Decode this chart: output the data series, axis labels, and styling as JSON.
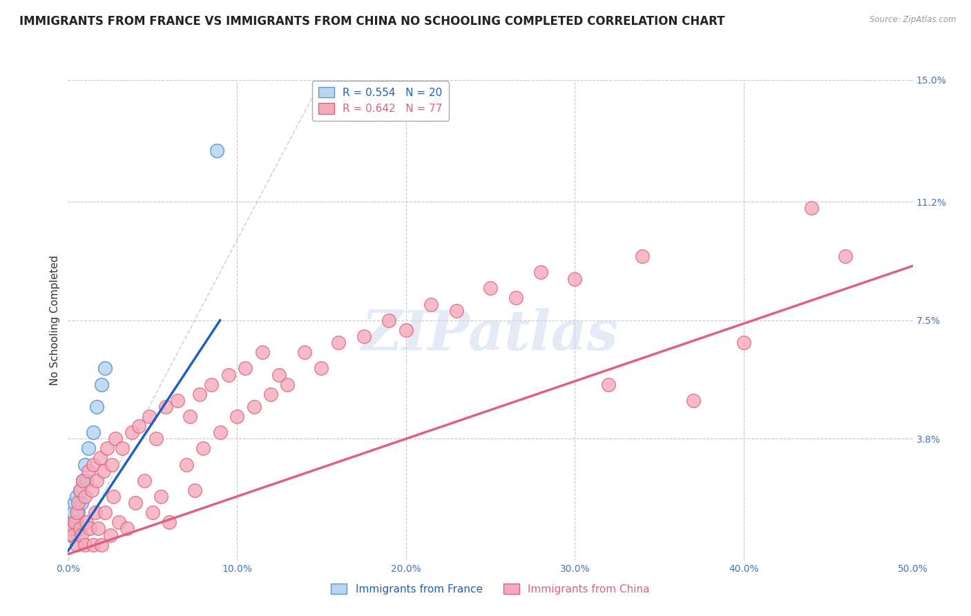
{
  "title": "IMMIGRANTS FROM FRANCE VS IMMIGRANTS FROM CHINA NO SCHOOLING COMPLETED CORRELATION CHART",
  "source": "Source: ZipAtlas.com",
  "ylabel": "No Schooling Completed",
  "legend_labels": [
    "Immigrants from France",
    "Immigrants from China"
  ],
  "france_label": "R = 0.554   N = 20",
  "china_label": "R = 0.642   N = 77",
  "xlim": [
    0.0,
    0.5
  ],
  "ylim": [
    0.0,
    0.15
  ],
  "xticks": [
    0.0,
    0.1,
    0.2,
    0.3,
    0.4,
    0.5
  ],
  "xticklabels": [
    "0.0%",
    "10.0%",
    "20.0%",
    "30.0%",
    "40.0%",
    "50.0%"
  ],
  "yticks": [
    0.0,
    0.038,
    0.075,
    0.112,
    0.15
  ],
  "yticklabels": [
    "",
    "3.8%",
    "7.5%",
    "11.2%",
    "15.0%"
  ],
  "grid_color": "#c8c8c8",
  "background_color": "#ffffff",
  "france_color": "#b8d4f0",
  "france_edge": "#5a9ad0",
  "china_color": "#f5aabb",
  "china_edge": "#e06080",
  "france_line_color": "#2060c0",
  "china_line_color": "#e06080",
  "diagonal_color": "#c0c0c0",
  "watermark_text": "ZIPatlas",
  "title_fontsize": 12,
  "axis_label_fontsize": 11,
  "tick_fontsize": 10,
  "france_scatter_x": [
    0.001,
    0.002,
    0.003,
    0.003,
    0.004,
    0.004,
    0.005,
    0.005,
    0.006,
    0.007,
    0.008,
    0.009,
    0.01,
    0.011,
    0.012,
    0.015,
    0.017,
    0.02,
    0.022,
    0.088
  ],
  "france_scatter_y": [
    0.01,
    0.008,
    0.012,
    0.015,
    0.01,
    0.018,
    0.012,
    0.02,
    0.015,
    0.022,
    0.018,
    0.025,
    0.03,
    0.025,
    0.035,
    0.04,
    0.048,
    0.055,
    0.06,
    0.128
  ],
  "china_scatter_x": [
    0.002,
    0.003,
    0.004,
    0.005,
    0.005,
    0.006,
    0.007,
    0.007,
    0.008,
    0.009,
    0.01,
    0.01,
    0.011,
    0.012,
    0.013,
    0.014,
    0.015,
    0.015,
    0.016,
    0.017,
    0.018,
    0.019,
    0.02,
    0.021,
    0.022,
    0.023,
    0.025,
    0.026,
    0.027,
    0.028,
    0.03,
    0.032,
    0.035,
    0.038,
    0.04,
    0.042,
    0.045,
    0.048,
    0.05,
    0.052,
    0.055,
    0.058,
    0.06,
    0.065,
    0.07,
    0.072,
    0.075,
    0.078,
    0.08,
    0.085,
    0.09,
    0.095,
    0.1,
    0.105,
    0.11,
    0.115,
    0.12,
    0.125,
    0.13,
    0.14,
    0.15,
    0.16,
    0.175,
    0.19,
    0.2,
    0.215,
    0.23,
    0.25,
    0.265,
    0.28,
    0.3,
    0.32,
    0.34,
    0.37,
    0.4,
    0.44,
    0.46
  ],
  "china_scatter_y": [
    0.01,
    0.008,
    0.012,
    0.015,
    0.005,
    0.018,
    0.01,
    0.022,
    0.008,
    0.025,
    0.005,
    0.02,
    0.012,
    0.028,
    0.01,
    0.022,
    0.005,
    0.03,
    0.015,
    0.025,
    0.01,
    0.032,
    0.005,
    0.028,
    0.015,
    0.035,
    0.008,
    0.03,
    0.02,
    0.038,
    0.012,
    0.035,
    0.01,
    0.04,
    0.018,
    0.042,
    0.025,
    0.045,
    0.015,
    0.038,
    0.02,
    0.048,
    0.012,
    0.05,
    0.03,
    0.045,
    0.022,
    0.052,
    0.035,
    0.055,
    0.04,
    0.058,
    0.045,
    0.06,
    0.048,
    0.065,
    0.052,
    0.058,
    0.055,
    0.065,
    0.06,
    0.068,
    0.07,
    0.075,
    0.072,
    0.08,
    0.078,
    0.085,
    0.082,
    0.09,
    0.088,
    0.055,
    0.095,
    0.05,
    0.068,
    0.11,
    0.095
  ],
  "france_trend_x": [
    0.0,
    0.09
  ],
  "france_trend_y": [
    0.003,
    0.075
  ],
  "china_trend_x": [
    0.0,
    0.5
  ],
  "china_trend_y": [
    0.002,
    0.092
  ]
}
